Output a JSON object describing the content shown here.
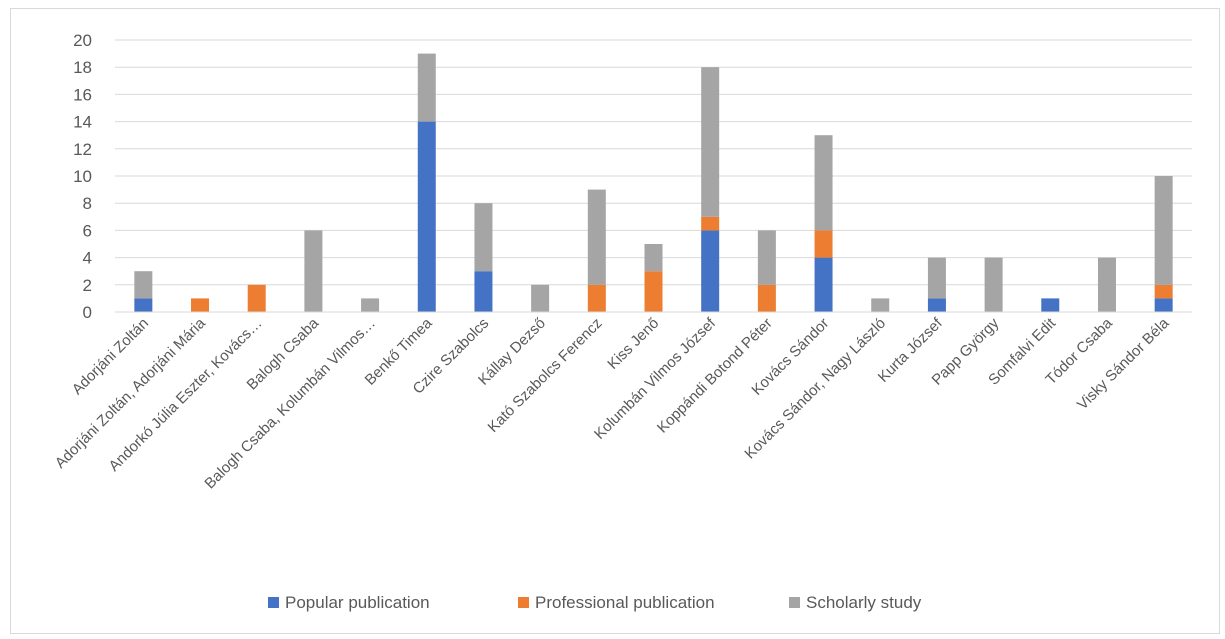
{
  "chart_data": {
    "type": "bar",
    "stacked": true,
    "categories": [
      "Adorjáni Zoltán",
      "Adorjáni Zoltán, Adorjáni Mária",
      "Andorkó Júlia Eszter, Kovács…",
      "Balogh Csaba",
      "Balogh Csaba, Kolumbán Vilmos…",
      "Benkő Timea",
      "Czire Szabolcs",
      "Kállay Dezső",
      "Kató Szabolcs Ferencz",
      "Kiss Jenő",
      "Kolumbán Vilmos József",
      "Koppándi Botond Péter",
      "Kovács Sándor",
      "Kovács Sándor, Nagy László",
      "Kurta József",
      "Papp György",
      "Somfalvi Edit",
      "Tódor Csaba",
      "Visky Sándor Béla"
    ],
    "series": [
      {
        "name": "Popular publication",
        "color": "#4472c4",
        "values": [
          1,
          0,
          0,
          0,
          0,
          14,
          3,
          0,
          0,
          0,
          6,
          0,
          4,
          0,
          1,
          0,
          1,
          0,
          1
        ]
      },
      {
        "name": "Professional publication",
        "color": "#ed7d31",
        "values": [
          0,
          1,
          2,
          0,
          0,
          0,
          0,
          0,
          2,
          3,
          1,
          2,
          2,
          0,
          0,
          0,
          0,
          0,
          1
        ]
      },
      {
        "name": "Scholarly study",
        "color": "#a5a5a5",
        "values": [
          2,
          0,
          0,
          6,
          1,
          5,
          5,
          2,
          7,
          2,
          11,
          4,
          7,
          1,
          3,
          4,
          0,
          4,
          8
        ]
      }
    ],
    "yticks": [
      "0",
      "2",
      "4",
      "6",
      "8",
      "10",
      "12",
      "14",
      "16",
      "18",
      "20"
    ],
    "ylim": [
      0,
      20
    ],
    "grid": true,
    "legend": "bottom"
  }
}
